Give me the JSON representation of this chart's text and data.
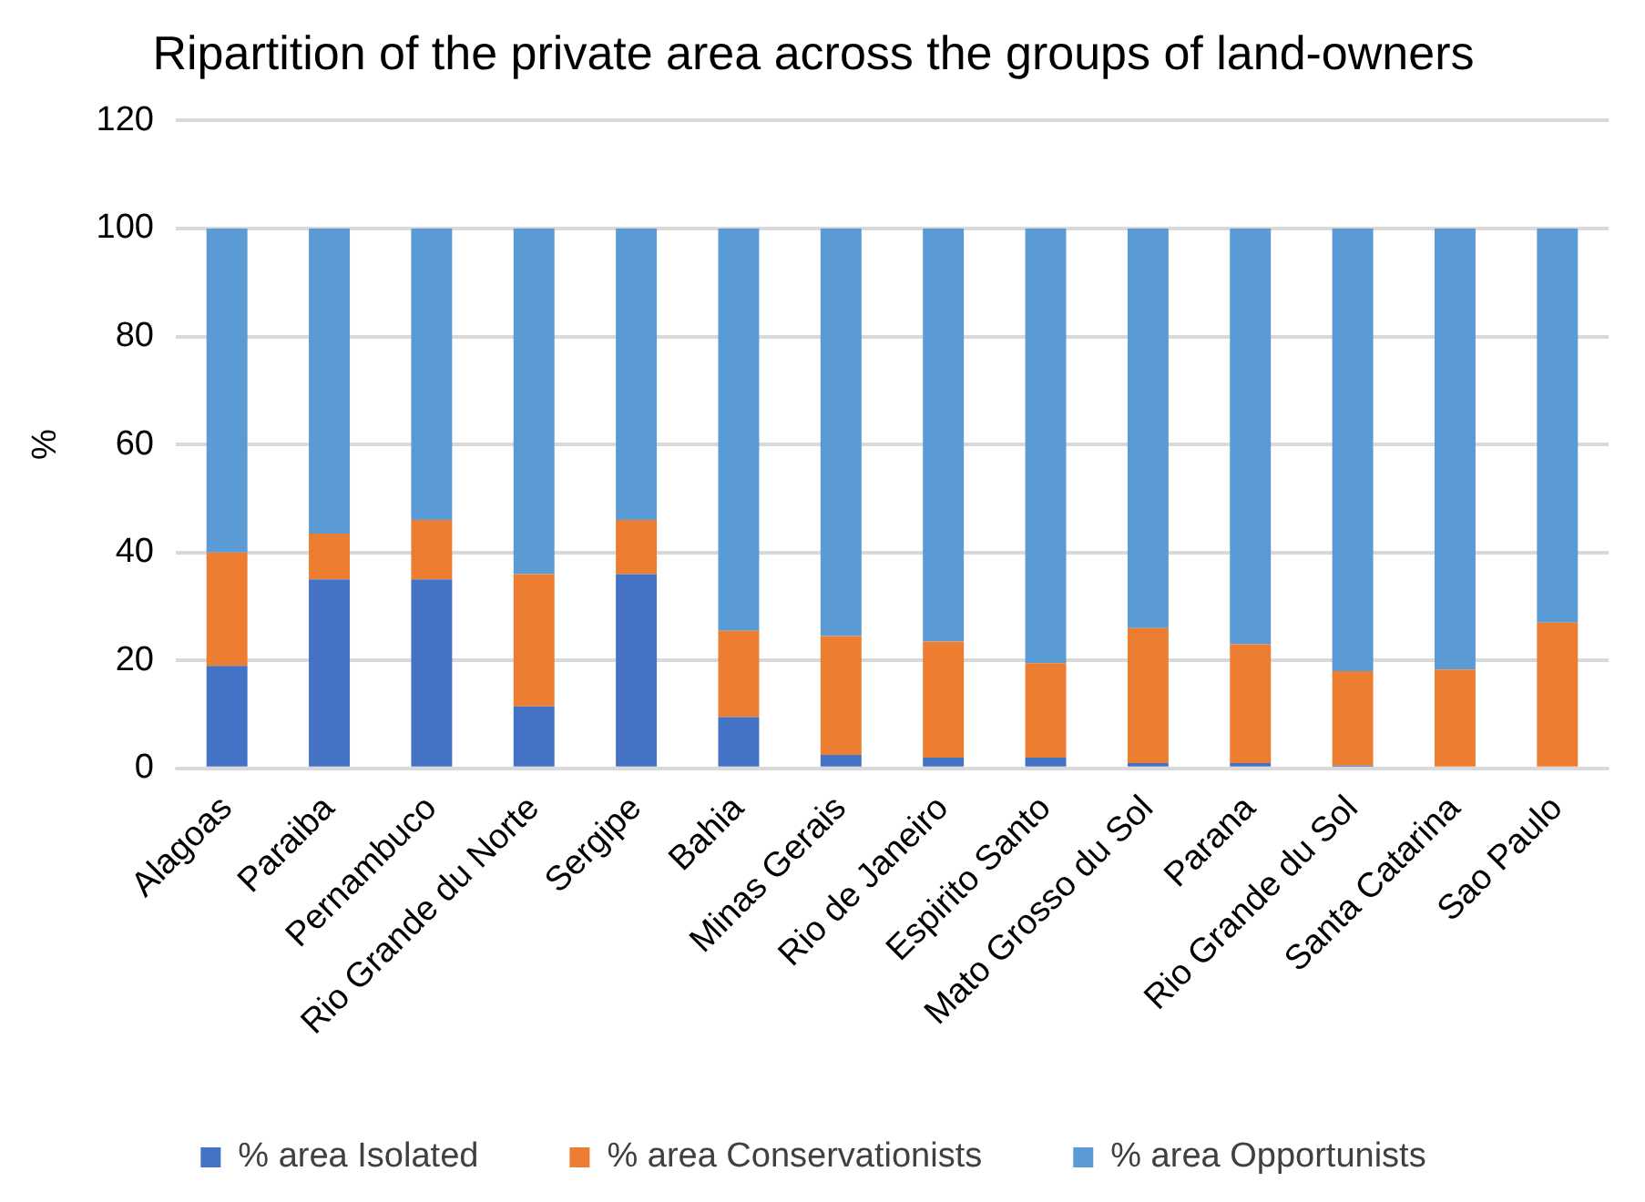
{
  "chart_data": {
    "type": "bar",
    "title": "Ripartition of the private area across the groups of land-owners",
    "ylabel": "%",
    "categories": [
      "Alagoas",
      "Paraiba",
      "Pernambuco",
      "Rio Grande du Norte",
      "Sergipe",
      "Bahia",
      "Minas Gerais",
      "Rio de Janeiro",
      "Espirito Santo",
      "Mato Grosso du Sol",
      "Parana",
      "Rio Grande du Sol",
      "Santa Catarina",
      "Sao Paulo"
    ],
    "stacked": true,
    "ylim": [
      0,
      120
    ],
    "yticks": [
      0,
      20,
      40,
      60,
      80,
      100,
      120
    ],
    "grid": "y",
    "legend": "bottom",
    "series": [
      {
        "name": "% area Isolated",
        "color": "#4472c4",
        "values": [
          19,
          35,
          35,
          11.5,
          36,
          9.5,
          2.5,
          2,
          2,
          1,
          1,
          0.5,
          0,
          0
        ]
      },
      {
        "name": "% area Conservationists",
        "color": "#ed7d31",
        "values": [
          21,
          8.5,
          11,
          24.5,
          10,
          16,
          22,
          21.5,
          17.5,
          25,
          22,
          17.5,
          18.3,
          27
        ]
      },
      {
        "name": "% area Opportunists",
        "color": "#5b9bd5",
        "values": [
          60,
          56.5,
          54,
          64,
          54,
          74.5,
          75.5,
          76.5,
          80.5,
          74,
          77,
          82,
          81.7,
          73
        ]
      }
    ]
  }
}
